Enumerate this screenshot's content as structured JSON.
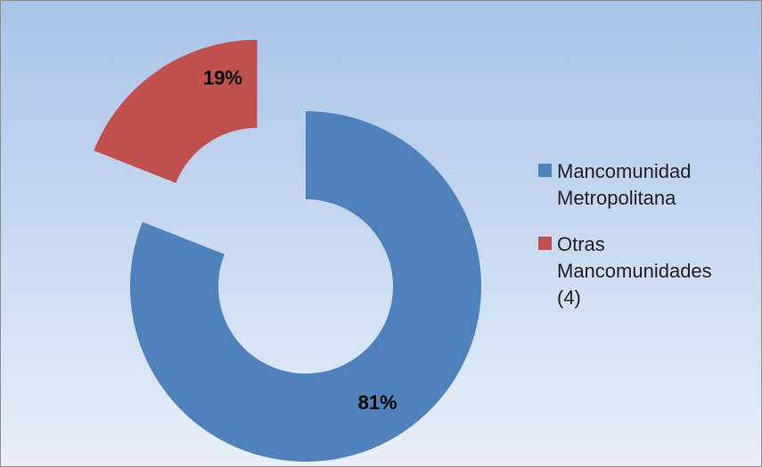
{
  "chart_data": {
    "type": "donut",
    "categories": [
      "Mancomunidad Metropolitana",
      "Otras Mancomunidades (4)"
    ],
    "values": [
      81,
      19
    ],
    "value_labels": [
      "81%",
      "19%"
    ],
    "colors": [
      "#4f81bd",
      "#c0504d"
    ],
    "legend": "right"
  }
}
